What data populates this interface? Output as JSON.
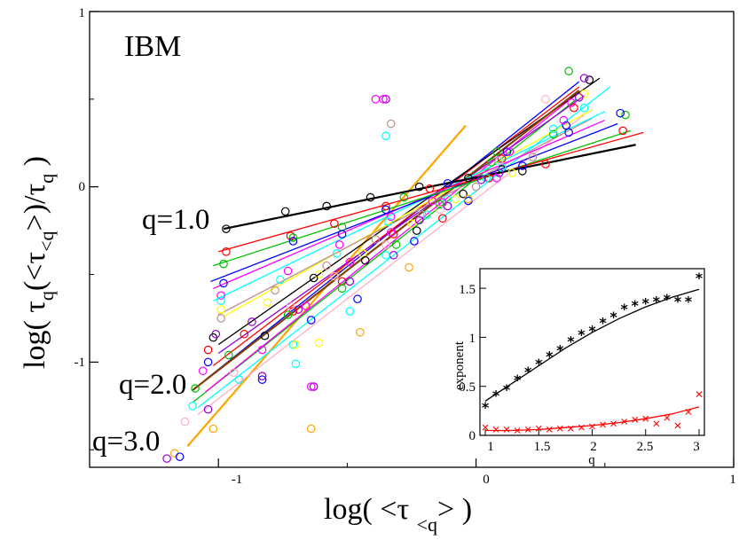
{
  "panel_label": "IBM",
  "annotations": [
    "q=1.0",
    "q=2.0",
    "q=3.0"
  ],
  "chart_data": [
    {
      "type": "scatter",
      "title": "",
      "xlabel": "log( <τ_<q> )",
      "ylabel": "log( τ_q(<τ_<q>)/τ_q )",
      "xlim": [
        -1.5,
        1.0
      ],
      "ylim": [
        -1.6,
        1.0
      ],
      "x_ticks": [
        "-1",
        "0",
        "1"
      ],
      "y_ticks": [
        "1",
        "0",
        "-1"
      ],
      "grid": false,
      "fit_lines": [
        {
          "q": "3.0",
          "color": "#ffa500",
          "x": [
            -1.12,
            -0.04
          ],
          "y": [
            -1.48,
            0.35
          ]
        },
        {
          "q": "3.0",
          "color": "#ffb0c8",
          "x": [
            -1.08,
            0.42
          ],
          "y": [
            -1.3,
            0.41
          ]
        },
        {
          "q": "3.0",
          "color": "#00ffff",
          "x": [
            -1.08,
            0.52
          ],
          "y": [
            -1.26,
            0.57
          ]
        },
        {
          "q": "",
          "color": "#00c000",
          "x": [
            -1.1,
            0.39
          ],
          "y": [
            -1.23,
            0.5
          ]
        },
        {
          "q": "",
          "color": "#ff00ff",
          "x": [
            -1.05,
            0.4
          ],
          "y": [
            -1.17,
            0.54
          ]
        },
        {
          "q": "",
          "color": "#0000ff",
          "x": [
            -1.05,
            0.4
          ],
          "y": [
            -1.1,
            0.6
          ]
        },
        {
          "q": "",
          "color": "#ff0000",
          "x": [
            -1.02,
            0.4
          ],
          "y": [
            -1.02,
            0.57
          ]
        },
        {
          "q": "",
          "color": "#9400d3",
          "x": [
            -1.0,
            0.42
          ],
          "y": [
            -0.95,
            0.52
          ]
        },
        {
          "q": "",
          "color": "#000000",
          "x": [
            -1.0,
            0.48
          ],
          "y": [
            -0.9,
            0.62
          ]
        },
        {
          "q": "2.0",
          "color": "#804000",
          "x": [
            -1.1,
            0.4
          ],
          "y": [
            -1.16,
            0.55
          ]
        },
        {
          "q": "",
          "color": "#ffff00",
          "x": [
            -0.98,
            0.45
          ],
          "y": [
            -0.74,
            0.44
          ]
        },
        {
          "q": "",
          "color": "#bc8f8f",
          "x": [
            -1.0,
            0.45
          ],
          "y": [
            -0.73,
            0.39
          ]
        },
        {
          "q": "",
          "color": "#00ffff",
          "x": [
            -1.02,
            0.5
          ],
          "y": [
            -0.65,
            0.43
          ]
        },
        {
          "q": "",
          "color": "#ff00ff",
          "x": [
            -1.02,
            0.5
          ],
          "y": [
            -0.58,
            0.38
          ]
        },
        {
          "q": "",
          "color": "#0000ff",
          "x": [
            -1.03,
            0.55
          ],
          "y": [
            -0.54,
            0.36
          ]
        },
        {
          "q": "",
          "color": "#00c000",
          "x": [
            -1.02,
            0.6
          ],
          "y": [
            -0.45,
            0.32
          ]
        },
        {
          "q": "",
          "color": "#ff0000",
          "x": [
            -1.0,
            0.65
          ],
          "y": [
            -0.37,
            0.31
          ]
        },
        {
          "q": "1.0",
          "color": "#000000",
          "x": [
            -0.98,
            0.62
          ],
          "y": [
            -0.24,
            0.24
          ]
        }
      ],
      "points": [
        {
          "color": "#000000",
          "x": [
            -0.97,
            -0.74,
            -0.58,
            -0.41,
            -0.22,
            -0.03,
            0.1,
            0.44
          ],
          "y": [
            -0.24,
            -0.14,
            -0.11,
            -0.06,
            0.0,
            0.05,
            0.1,
            0.61
          ]
        },
        {
          "color": "#ff0000",
          "x": [
            -0.97,
            -0.72,
            -0.55,
            -0.35,
            -0.18,
            0.1,
            0.38,
            0.57
          ],
          "y": [
            -0.37,
            -0.28,
            -0.21,
            -0.11,
            -0.01,
            0.16,
            0.45,
            0.32
          ]
        },
        {
          "color": "#00c000",
          "x": [
            -0.98,
            -0.71,
            -0.52,
            -0.28,
            -0.13,
            0.06,
            0.3,
            0.58
          ],
          "y": [
            -0.44,
            -0.29,
            -0.23,
            -0.06,
            -0.09,
            0.14,
            0.3,
            0.41
          ]
        },
        {
          "color": "#0000ff",
          "x": [
            -0.98,
            -0.71,
            -0.52,
            -0.35,
            -0.11,
            0.12,
            0.35,
            0.56
          ],
          "y": [
            -0.55,
            -0.31,
            -0.27,
            -0.13,
            0.02,
            0.2,
            0.35,
            0.42
          ]
        },
        {
          "color": "#ff00ff",
          "x": [
            -0.99,
            -0.73,
            -0.53,
            -0.33,
            -0.17,
            0.13,
            0.37
          ],
          "y": [
            -0.62,
            -0.48,
            -0.33,
            -0.17,
            -0.08,
            0.2,
            0.48
          ]
        },
        {
          "color": "#00ffff",
          "x": [
            -0.99,
            -0.76,
            -0.54,
            -0.34,
            -0.11,
            0.1,
            0.42
          ],
          "y": [
            -0.65,
            -0.53,
            -0.38,
            -0.2,
            -0.07,
            0.11,
            0.45
          ]
        },
        {
          "color": "#bc8f8f",
          "x": [
            -0.99,
            -0.78,
            -0.58,
            -0.39,
            -0.21,
            0.0,
            0.22
          ],
          "y": [
            -0.75,
            -0.59,
            -0.45,
            -0.3,
            -0.16,
            0.0,
            0.17
          ]
        },
        {
          "color": "#ffff00",
          "x": [
            -0.99,
            -0.81,
            -0.61,
            -0.44,
            -0.25,
            -0.08,
            0.14,
            0.42
          ],
          "y": [
            -0.7,
            -0.66,
            -0.5,
            -0.38,
            -0.21,
            -0.07,
            0.08,
            0.53
          ]
        },
        {
          "color": "#000000",
          "x": [
            -1.02,
            -0.82,
            -0.63,
            -0.43,
            -0.23,
            -0.05,
            0.18
          ],
          "y": [
            -0.86,
            -0.85,
            -0.52,
            -0.42,
            -0.25,
            -0.04,
            0.09
          ]
        },
        {
          "color": "#9400d3",
          "x": [
            -1.01,
            -0.87,
            -0.69,
            -0.49,
            -0.32,
            -0.11,
            0.09,
            0.4
          ],
          "y": [
            -0.84,
            -0.77,
            -0.7,
            -0.54,
            -0.39,
            -0.11,
            0.08,
            0.51
          ]
        },
        {
          "color": "#ff0000",
          "x": [
            -1.04,
            -0.9,
            -0.71,
            -0.52,
            -0.32,
            -0.13,
            0.05,
            0.27
          ],
          "y": [
            -0.93,
            -0.84,
            -0.71,
            -0.54,
            -0.27,
            -0.18,
            0.05,
            0.13
          ]
        },
        {
          "color": "#0000ff",
          "x": [
            -1.04,
            -0.83,
            -0.64,
            -0.46,
            -0.24,
            -0.03,
            0.18,
            0.36
          ],
          "y": [
            -1.0,
            -1.1,
            -0.76,
            -0.64,
            -0.31,
            -0.08,
            0.12,
            0.31
          ]
        },
        {
          "color": "#ff00ff",
          "x": [
            -1.06,
            -0.83,
            -0.66,
            -0.49,
            -0.33,
            -0.13,
            0.08,
            0.34
          ],
          "y": [
            -1.05,
            -0.93,
            -0.68,
            -0.43,
            -0.26,
            -0.09,
            0.05,
            0.38
          ]
        },
        {
          "color": "#00c000",
          "x": [
            -1.09,
            -0.96,
            -0.73,
            -0.52,
            -0.31,
            -0.14,
            0.08,
            0.36
          ],
          "y": [
            -1.15,
            -0.96,
            -0.73,
            -0.58,
            -0.33,
            -0.1,
            0.2,
            0.66
          ]
        },
        {
          "color": "#00ffff",
          "x": [
            -1.1,
            -0.92,
            -0.7,
            -0.49,
            -0.35,
            -0.19,
            0.04,
            0.3
          ],
          "y": [
            -1.25,
            -1.1,
            -1.01,
            -0.71,
            -0.39,
            -0.16,
            0.05,
            0.33
          ]
        },
        {
          "color": "#ffb0c8",
          "x": [
            -1.13,
            -0.94,
            -0.72,
            -0.55,
            -0.35,
            -0.14,
            0.09,
            0.27
          ],
          "y": [
            -1.34,
            -1.06,
            -0.68,
            -0.51,
            -0.33,
            -0.13,
            0.15,
            0.5
          ]
        },
        {
          "color": "#ffa500",
          "x": [
            -1.17,
            -1.02,
            -0.83,
            -0.64,
            -0.45,
            -0.26,
            -0.03
          ],
          "y": [
            -1.52,
            -1.38,
            -1.08,
            -1.38,
            -0.83,
            -0.46,
            -0.07
          ]
        },
        {
          "color": "#9400d3",
          "x": [
            -1.2,
            -1.04,
            -0.83,
            -0.63,
            -0.35,
            -0.22,
            0.02,
            0.42
          ],
          "y": [
            -1.55,
            -1.27,
            -1.08,
            -1.14,
            0.5,
            -0.19,
            0.04,
            0.62
          ]
        },
        {
          "color": "#ff00ff",
          "x": [
            -0.39,
            -0.36,
            -0.64
          ],
          "y": [
            0.5,
            0.5,
            -1.14
          ]
        },
        {
          "color": "#0000ff",
          "x": [
            -1.15
          ],
          "y": [
            -1.54
          ]
        },
        {
          "color": "#bc8f8f",
          "x": [
            -0.33
          ],
          "y": [
            0.36
          ]
        },
        {
          "color": "#00ffff",
          "x": [
            -0.35,
            -0.71
          ],
          "y": [
            0.29,
            -0.9
          ]
        },
        {
          "color": "#ffff00",
          "x": [
            -0.7,
            -0.61
          ],
          "y": [
            -0.9,
            -0.89
          ]
        }
      ]
    },
    {
      "type": "scatter",
      "title": "",
      "xlabel": "q",
      "ylabel": "exponent",
      "xlim": [
        0.95,
        3.05
      ],
      "ylim": [
        0.0,
        1.7
      ],
      "x_ticks": [
        "1",
        "1.5",
        "2",
        "2.5",
        "3"
      ],
      "y_ticks": [
        "0",
        "0.5",
        "1",
        "1.5"
      ],
      "series": [
        {
          "marker": "*",
          "color": "#000000",
          "x": [
            1.0,
            1.1,
            1.2,
            1.3,
            1.4,
            1.5,
            1.6,
            1.7,
            1.8,
            1.9,
            2.0,
            2.1,
            2.2,
            2.3,
            2.4,
            2.5,
            2.6,
            2.7,
            2.8,
            2.9,
            3.0
          ],
          "y": [
            0.3,
            0.42,
            0.48,
            0.58,
            0.66,
            0.74,
            0.82,
            0.88,
            0.97,
            1.04,
            1.08,
            1.16,
            1.22,
            1.3,
            1.34,
            1.36,
            1.38,
            1.4,
            1.38,
            1.38,
            1.62
          ]
        },
        {
          "marker": "x",
          "color": "#ff0000",
          "x": [
            1.0,
            1.1,
            1.2,
            1.3,
            1.4,
            1.5,
            1.6,
            1.7,
            1.8,
            1.9,
            2.0,
            2.1,
            2.2,
            2.3,
            2.4,
            2.5,
            2.6,
            2.7,
            2.8,
            2.9,
            3.0
          ],
          "y": [
            0.08,
            0.06,
            0.06,
            0.05,
            0.06,
            0.07,
            0.06,
            0.07,
            0.07,
            0.08,
            0.09,
            0.11,
            0.12,
            0.14,
            0.16,
            0.17,
            0.12,
            0.18,
            0.1,
            0.24,
            0.42
          ]
        }
      ],
      "fit_curves": [
        {
          "color": "#000000",
          "x": [
            1.0,
            1.25,
            1.5,
            1.75,
            2.0,
            2.25,
            2.5,
            2.75,
            3.0
          ],
          "y": [
            0.35,
            0.53,
            0.71,
            0.89,
            1.05,
            1.19,
            1.31,
            1.41,
            1.49
          ]
        },
        {
          "color": "#ff0000",
          "x": [
            1.0,
            1.25,
            1.5,
            1.75,
            2.0,
            2.25,
            2.5,
            2.75,
            3.0
          ],
          "y": [
            0.05,
            0.05,
            0.06,
            0.08,
            0.1,
            0.13,
            0.17,
            0.22,
            0.29
          ]
        }
      ]
    }
  ]
}
